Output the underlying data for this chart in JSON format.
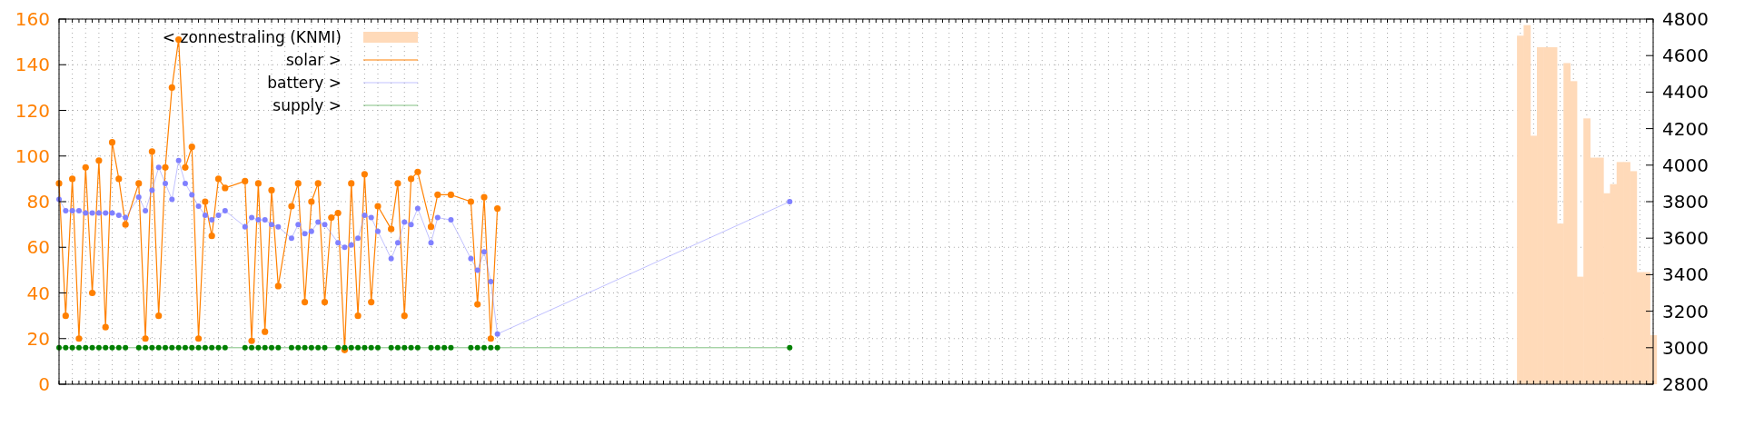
{
  "chart_data": {
    "type": "line",
    "categories": [
      null,
      null,
      null,
      null,
      null,
      null,
      null,
      null,
      null,
      null,
      null,
      null,
      null,
      null,
      null,
      null,
      null,
      null,
      null,
      null,
      null,
      null,
      null,
      null,
      null,
      null,
      null,
      null,
      null,
      null,
      null,
      null,
      null,
      null,
      null,
      null,
      null,
      null,
      null,
      null,
      null,
      null,
      null,
      null,
      null,
      null,
      null,
      null,
      null,
      null,
      null,
      null,
      null,
      null,
      null,
      null,
      null,
      null,
      null,
      null,
      null,
      null,
      null,
      null,
      null,
      null,
      null,
      null,
      null,
      null,
      null,
      null,
      null,
      null,
      null,
      null,
      null,
      null,
      null,
      null,
      null,
      null,
      null,
      null,
      null,
      null,
      null,
      null,
      null,
      null,
      null,
      null,
      null,
      null,
      null,
      null,
      null,
      null,
      null,
      null,
      null,
      null,
      null,
      null,
      null,
      null,
      null,
      null,
      null,
      null,
      null,
      null,
      null,
      null,
      null,
      null,
      null,
      null,
      null,
      null,
      null,
      null,
      null,
      null,
      null,
      null,
      null,
      null,
      null,
      null,
      null,
      null,
      null,
      null,
      null,
      null,
      null,
      null,
      null,
      null,
      null,
      null,
      null,
      null,
      null,
      null,
      null,
      null,
      null,
      null,
      null,
      null,
      null,
      null,
      null,
      null,
      null,
      null,
      null,
      null,
      null,
      null,
      null,
      null,
      null,
      null,
      null,
      null,
      null,
      null,
      null,
      null,
      null,
      null,
      null,
      null,
      null,
      null,
      null,
      null,
      null,
      null,
      null,
      null,
      null,
      null,
      null,
      null,
      null,
      null,
      null,
      null,
      null,
      null,
      null,
      null,
      null,
      null,
      null,
      null,
      null,
      null,
      null,
      null,
      null,
      null,
      null,
      null,
      null,
      null,
      null,
      null,
      null,
      null,
      null,
      null,
      null,
      null,
      null,
      null,
      null,
      null,
      null,
      null,
      null,
      null,
      null,
      null,
      null,
      null,
      null,
      null,
      null,
      null,
      null,
      null,
      null,
      null,
      null,
      null,
      null
    ],
    "series": [
      {
        "name": "< zonnestraling (KNMI)",
        "type": "bar",
        "axis": "y2",
        "color": "#ffdab9",
        "values": [
          null,
          null,
          null,
          null,
          null,
          null,
          null,
          null,
          null,
          null,
          null,
          null,
          null,
          null,
          null,
          null,
          null,
          null,
          null,
          null,
          null,
          null,
          null,
          null,
          null,
          null,
          null,
          null,
          null,
          null,
          null,
          null,
          null,
          null,
          null,
          null,
          null,
          null,
          null,
          null,
          null,
          null,
          null,
          null,
          null,
          null,
          null,
          null,
          null,
          null,
          null,
          null,
          null,
          null,
          null,
          null,
          null,
          null,
          null,
          null,
          null,
          null,
          null,
          null,
          null,
          null,
          null,
          null,
          null,
          null,
          null,
          null,
          null,
          null,
          null,
          null,
          null,
          null,
          null,
          null,
          null,
          null,
          null,
          null,
          null,
          null,
          null,
          null,
          null,
          null,
          null,
          null,
          null,
          null,
          null,
          null,
          null,
          null,
          null,
          null,
          null,
          null,
          null,
          null,
          null,
          null,
          null,
          null,
          null,
          null,
          null,
          null,
          null,
          null,
          null,
          null,
          null,
          null,
          null,
          null,
          null,
          null,
          null,
          null,
          null,
          null,
          null,
          null,
          null,
          null,
          null,
          null,
          null,
          null,
          null,
          null,
          null,
          null,
          null,
          null,
          null,
          null,
          null,
          null,
          null,
          null,
          null,
          null,
          null,
          null,
          null,
          null,
          null,
          null,
          null,
          null,
          null,
          null,
          null,
          null,
          null,
          null,
          null,
          null,
          null,
          null,
          null,
          null,
          null,
          null,
          null,
          null,
          null,
          null,
          null,
          null,
          null,
          null,
          null,
          null,
          null,
          null,
          null,
          null,
          null,
          null,
          null,
          null,
          null,
          null,
          null,
          null,
          null,
          null,
          null,
          null,
          null,
          null,
          null,
          null,
          null,
          null,
          null,
          null,
          null,
          null,
          null,
          null,
          null,
          null,
          null,
          null,
          null,
          null,
          null,
          null,
          null,
          null,
          null,
          null,
          4709,
          4767,
          4161,
          4646,
          4646,
          4646,
          3680,
          4559,
          4460,
          3389,
          4256,
          4041,
          4041,
          3846,
          3896,
          4017,
          4017,
          3967,
          3414,
          3414,
          3069
        ]
      },
      {
        "name": "solar >",
        "color": "#ff8000",
        "values": [
          88,
          30,
          90,
          20,
          95,
          40,
          98,
          25,
          106,
          90,
          70,
          null,
          88,
          20,
          102,
          30,
          95,
          130,
          151,
          95,
          104,
          20,
          80,
          65,
          90,
          86,
          null,
          null,
          89,
          19,
          88,
          23,
          85,
          43,
          null,
          78,
          88,
          36,
          80,
          88,
          36,
          73,
          75,
          15,
          88,
          30,
          92,
          36,
          78,
          null,
          68,
          88,
          30,
          90,
          93,
          null,
          69,
          83,
          null,
          83,
          null,
          null,
          80,
          35,
          82,
          20,
          77,
          null,
          null,
          null,
          null,
          null,
          null,
          null,
          null,
          null,
          null,
          null,
          null,
          null,
          null,
          null,
          null,
          null,
          null,
          null,
          null,
          null,
          null,
          null,
          null,
          null,
          null,
          null,
          null,
          null,
          null,
          null,
          null,
          null,
          null,
          null,
          null,
          null,
          null,
          null,
          null,
          null,
          null,
          null,
          null,
          null,
          null,
          null,
          null,
          null,
          null,
          null,
          null,
          null,
          null,
          null,
          null,
          null,
          null,
          null,
          null,
          null,
          null,
          null,
          null,
          null,
          null,
          null,
          null,
          null,
          null,
          null,
          null,
          null,
          null,
          null,
          null,
          null,
          null,
          null,
          null,
          null,
          null,
          null,
          null,
          null,
          null,
          null,
          null,
          null,
          null,
          null,
          null,
          null,
          null,
          null,
          null,
          null,
          null,
          null,
          null,
          null,
          null,
          null,
          null,
          null,
          null,
          null,
          null,
          null,
          null,
          null,
          null,
          null,
          null,
          null,
          null,
          null,
          null,
          null,
          null,
          null,
          null,
          null,
          null,
          null,
          null,
          null,
          null,
          null,
          null,
          null,
          null,
          null,
          null,
          null,
          null,
          null,
          null,
          null,
          null,
          null,
          null,
          null,
          null,
          null,
          null,
          null,
          null,
          null,
          null,
          null,
          null,
          null,
          null,
          null,
          null,
          null,
          null,
          null,
          null,
          null,
          null,
          null,
          null,
          null,
          null,
          null,
          null,
          null,
          null,
          null,
          null,
          null,
          null
        ]
      },
      {
        "name": "battery >",
        "color": "#8080ff",
        "values": [
          81,
          76,
          76,
          76,
          75,
          75,
          75,
          75,
          75,
          74,
          73,
          null,
          82,
          76,
          85,
          95,
          88,
          81,
          98,
          88,
          83,
          78,
          74,
          72,
          74,
          76,
          null,
          null,
          69,
          73,
          72,
          72,
          70,
          69,
          null,
          64,
          70,
          66,
          67,
          71,
          70,
          null,
          62,
          60,
          61,
          64,
          74,
          73,
          67,
          null,
          55,
          62,
          71,
          70,
          77,
          null,
          62,
          73,
          null,
          72,
          null,
          null,
          55,
          50,
          58,
          45,
          22,
          null,
          null,
          null,
          null,
          null,
          null,
          null,
          null,
          null,
          null,
          null,
          null,
          null,
          null,
          null,
          null,
          null,
          null,
          null,
          null,
          null,
          null,
          null,
          null,
          null,
          null,
          null,
          null,
          null,
          null,
          null,
          null,
          null,
          null,
          null,
          null,
          null,
          null,
          null,
          null,
          null,
          null,
          null,
          80,
          null,
          null,
          null,
          null,
          null,
          null,
          null,
          null,
          null,
          null,
          null,
          null,
          null,
          null,
          null,
          null,
          null,
          null,
          null,
          null,
          null,
          null,
          null,
          null,
          null,
          null,
          null,
          null,
          null,
          null,
          null,
          null,
          null,
          null,
          null,
          null,
          null,
          null,
          null,
          null,
          null,
          null,
          null,
          null,
          null,
          null,
          null,
          null,
          null,
          null,
          null,
          null,
          null,
          null,
          null,
          null,
          null,
          null,
          null,
          null,
          null,
          null,
          null,
          null,
          null,
          null,
          null,
          null,
          null,
          null,
          null,
          null,
          null,
          null,
          null,
          null,
          null,
          null,
          null,
          null,
          null,
          null,
          null,
          null,
          null,
          null,
          null,
          null,
          null,
          null,
          null,
          null,
          null,
          null,
          null,
          null,
          null,
          null,
          null,
          null,
          null,
          null,
          null,
          null,
          null,
          null,
          null,
          null,
          null,
          null,
          null,
          null,
          null,
          null,
          null,
          null,
          null,
          null,
          null,
          null,
          null,
          null,
          null,
          null,
          null,
          null,
          null,
          null,
          null,
          null
        ]
      },
      {
        "name": "supply >",
        "color": "#008000",
        "values": [
          16,
          16,
          16,
          16,
          16,
          16,
          16,
          16,
          16,
          16,
          16,
          null,
          16,
          16,
          16,
          16,
          16,
          16,
          16,
          16,
          16,
          16,
          16,
          16,
          16,
          16,
          null,
          null,
          16,
          16,
          16,
          16,
          16,
          16,
          null,
          16,
          16,
          16,
          16,
          16,
          16,
          null,
          16,
          16,
          16,
          16,
          16,
          16,
          16,
          null,
          16,
          16,
          16,
          16,
          16,
          null,
          16,
          16,
          16,
          16,
          null,
          null,
          16,
          16,
          16,
          16,
          16,
          null,
          null,
          null,
          null,
          null,
          null,
          null,
          null,
          null,
          null,
          null,
          null,
          null,
          null,
          null,
          null,
          null,
          null,
          null,
          null,
          null,
          null,
          null,
          null,
          null,
          null,
          null,
          null,
          null,
          null,
          null,
          null,
          null,
          null,
          null,
          null,
          null,
          null,
          null,
          null,
          null,
          null,
          null,
          16,
          null,
          null,
          null,
          null,
          null,
          null,
          null,
          null,
          null,
          null,
          null,
          null,
          null,
          null,
          null,
          null,
          null,
          null,
          null,
          null,
          null,
          null,
          null,
          null,
          null,
          null,
          null,
          null,
          null,
          null,
          null,
          null,
          null,
          null,
          null,
          null,
          null,
          null,
          null,
          null,
          null,
          null,
          null,
          null,
          null,
          null,
          null,
          null,
          null,
          null,
          null,
          null,
          null,
          null,
          null,
          null,
          null,
          null,
          null,
          null,
          null,
          null,
          null,
          null,
          null,
          null,
          null,
          null,
          null,
          null,
          null,
          null,
          null,
          null,
          null,
          null,
          null,
          null,
          null,
          null,
          null,
          null,
          null,
          null,
          null,
          null,
          null,
          null,
          null,
          null,
          null,
          null,
          null,
          null,
          null,
          null,
          null,
          null,
          null,
          null,
          null,
          null,
          null,
          null,
          null,
          null,
          null,
          null,
          null,
          null,
          null,
          null,
          null,
          null,
          null,
          null,
          null,
          null,
          null,
          null,
          null,
          null,
          null,
          null,
          null,
          null,
          null,
          null,
          null,
          null
        ]
      }
    ],
    "ylim": [
      0,
      160
    ],
    "yticks": [
      0,
      20,
      40,
      60,
      80,
      100,
      120,
      140,
      160
    ],
    "y2lim": [
      2800,
      4800
    ],
    "y2ticks": [
      2800,
      3000,
      3200,
      3400,
      3600,
      3800,
      4000,
      4200,
      4400,
      4600,
      4800
    ],
    "grid": true,
    "legend": "top left",
    "marker": "circle",
    "line_style": "solid"
  }
}
